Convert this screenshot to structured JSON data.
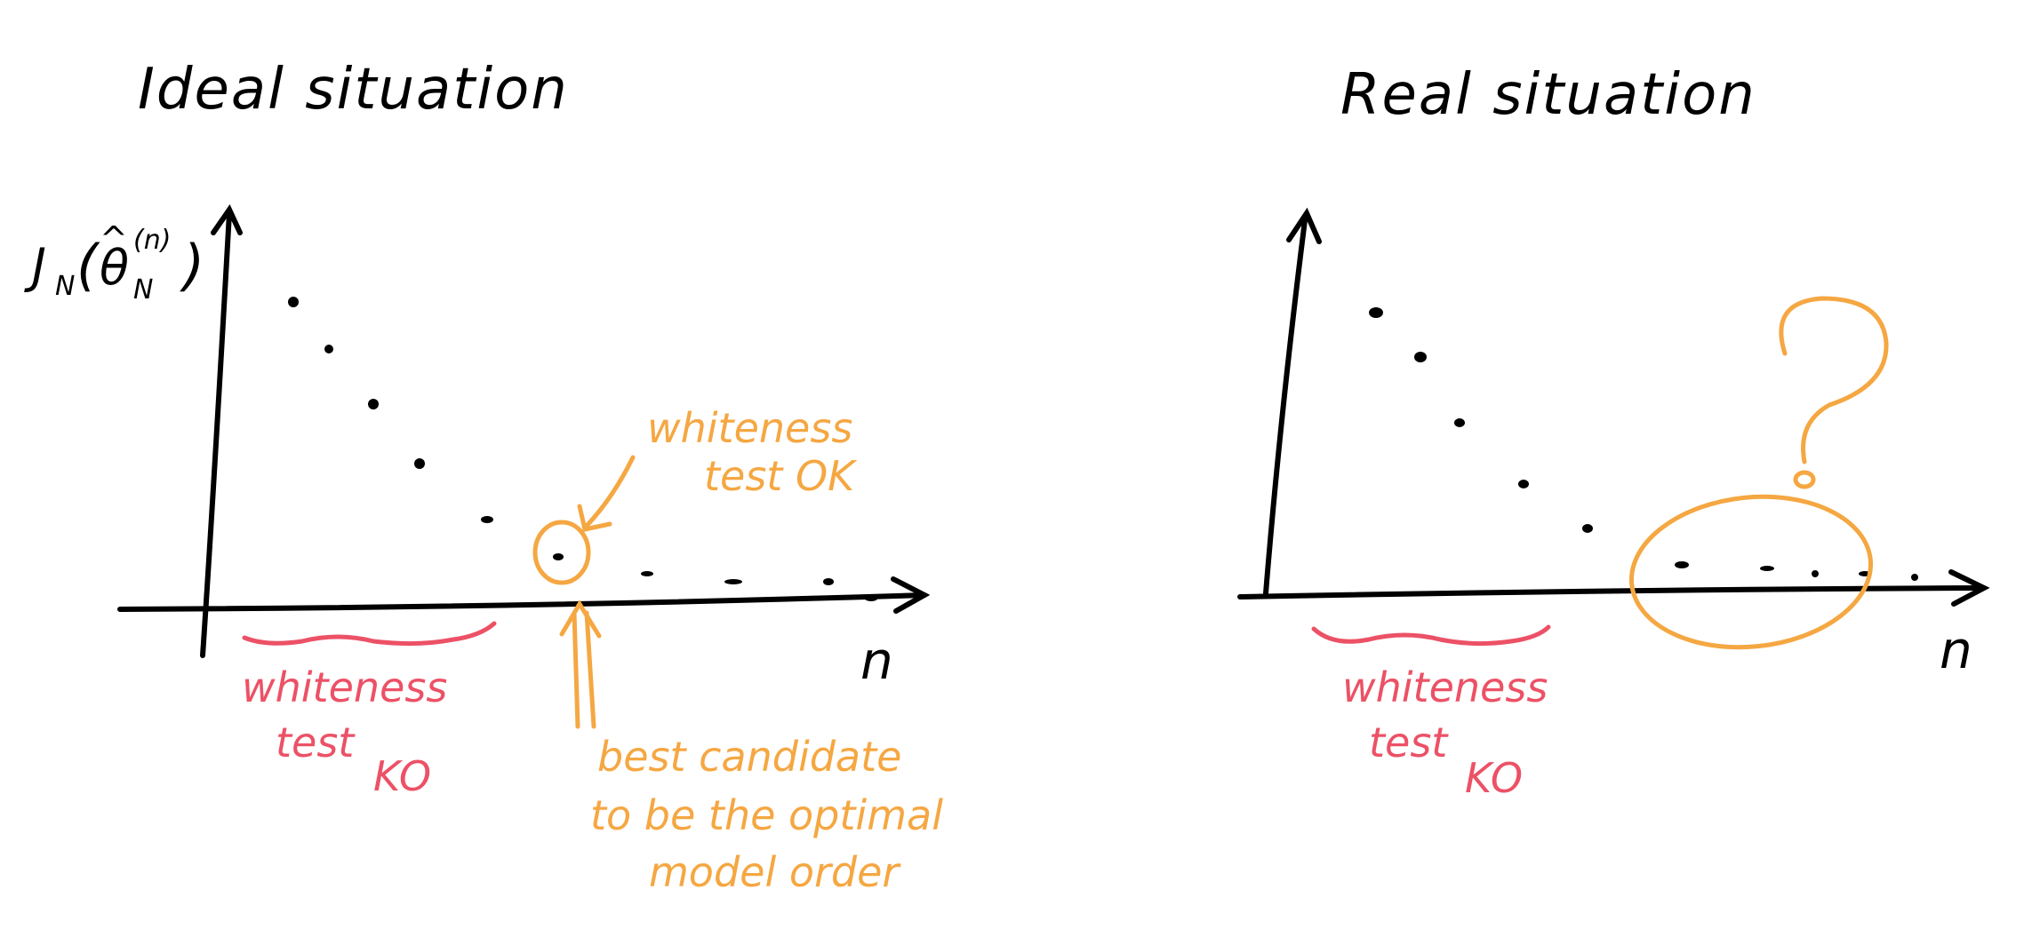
{
  "colors": {
    "ink": "#000000",
    "red": "#ec5166",
    "orange": "#f5a742",
    "background": "#ffffff"
  },
  "left_panel": {
    "title": "Ideal situation",
    "y_axis_label": "J_N(θ̂_N^(n))",
    "x_axis_label": "n",
    "bad_range_label": [
      "whiteness",
      "test",
      "KO"
    ],
    "ok_label": [
      "whiteness",
      "test OK"
    ],
    "best_label": [
      "best candidate",
      "to be the optimal",
      "model order"
    ]
  },
  "right_panel": {
    "title": "Real situation",
    "x_axis_label": "n",
    "bad_range_label": [
      "whiteness",
      "test",
      "KO"
    ],
    "question_mark": "?"
  }
}
